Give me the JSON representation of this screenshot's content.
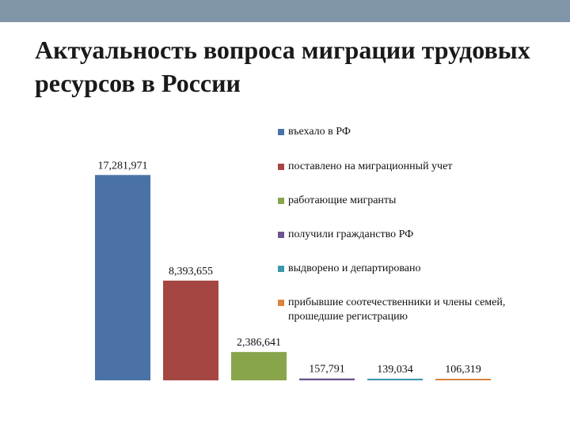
{
  "slide": {
    "title": "Актуальность вопроса миграции трудовых ресурсов в России",
    "top_bar_color": "#8096a8"
  },
  "chart_data": {
    "type": "bar",
    "title": "",
    "xlabel": "",
    "ylabel": "",
    "ylim": [
      0,
      18500000
    ],
    "grid": false,
    "legend_position": "right",
    "series": [
      {
        "name": "въехало в РФ",
        "value": 17281971,
        "label": "17,281,971",
        "color": "#4a72a6"
      },
      {
        "name": "поставлено на миграционный учет",
        "value": 8393655,
        "label": "8,393,655",
        "color": "#a64643"
      },
      {
        "name": "работающие мигранты",
        "value": 2386641,
        "label": "2,386,641",
        "color": "#88a54c"
      },
      {
        "name": "получили гражданство РФ",
        "value": 157791,
        "label": "157,791",
        "color": "#6d5490"
      },
      {
        "name": "выдворено и департировано",
        "value": 139034,
        "label": "139,034",
        "color": "#3e96ad"
      },
      {
        "name": "прибывшие соотечественники и члены семей, прошедшие регистрацию",
        "value": 106319,
        "label": "106,319",
        "color": "#d9843d"
      }
    ]
  }
}
